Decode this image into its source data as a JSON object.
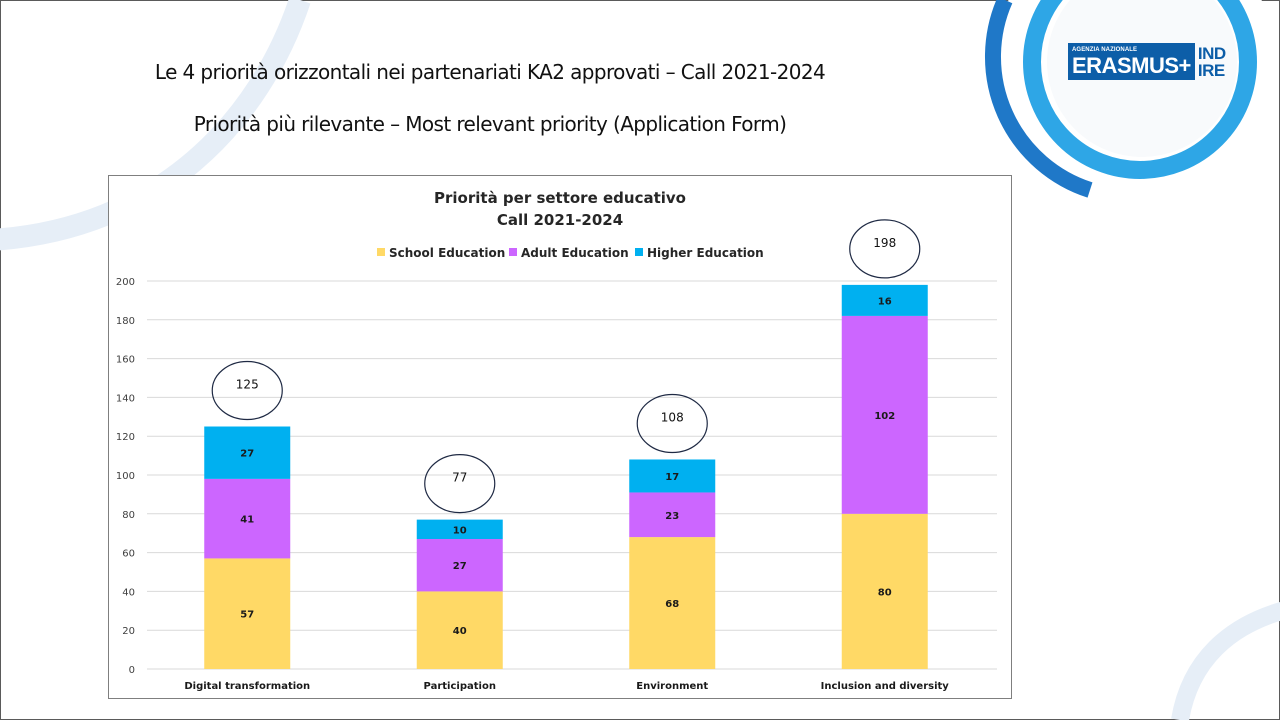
{
  "slide": {
    "title_line1": "Le  4 priorità orizzontali nei partenariati KA2 approvati – Call 2021-2024",
    "title_line2": "Priorità più rilevante – Most relevant priority (Application Form)"
  },
  "logo": {
    "agency_label": "AGENZIA NAZIONALE",
    "brand": "ERASMUS+",
    "partner_line1": "IND",
    "partner_line2": "IRE",
    "brand_color": "#0d5ea8"
  },
  "chart_data": {
    "type": "bar",
    "stacked": true,
    "title": "Priorità per settore educativo",
    "subtitle": "Call 2021-2024",
    "xlabel": "",
    "ylabel": "",
    "ylim": [
      0,
      200
    ],
    "yticks": [
      0,
      20,
      40,
      60,
      80,
      100,
      120,
      140,
      160,
      180,
      200
    ],
    "grid": true,
    "legend_position": "top",
    "categories": [
      "Digital transformation",
      "Participation",
      "Environment",
      "Inclusion and diversity"
    ],
    "series": [
      {
        "name": "School Education",
        "color": "#ffd966",
        "values": [
          57,
          40,
          68,
          80
        ]
      },
      {
        "name": "Adult Education",
        "color": "#cc66ff",
        "values": [
          41,
          27,
          23,
          102
        ]
      },
      {
        "name": "Higher Education",
        "color": "#00b0f0",
        "values": [
          27,
          10,
          17,
          16
        ]
      }
    ],
    "totals": [
      125,
      77,
      108,
      198
    ],
    "totals_annotation": "circled"
  }
}
